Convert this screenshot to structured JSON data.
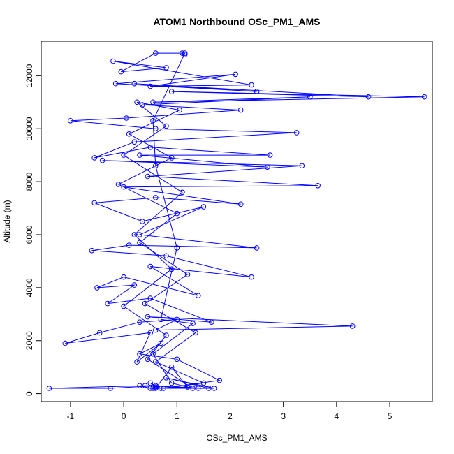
{
  "chart_data": {
    "type": "line",
    "title": "ATOM1 Northbound OSc_PM1_AMS",
    "xlabel": "OSc_PM1_AMS",
    "ylabel": "Altitude (m)",
    "xlim": [
      -1.55,
      5.8
    ],
    "ylim": [
      -300,
      13300
    ],
    "x_ticks": [
      -1,
      0,
      1,
      2,
      3,
      4,
      5
    ],
    "y_ticks": [
      0,
      2000,
      4000,
      6000,
      8000,
      10000,
      12000
    ],
    "grid": false,
    "legend": "none",
    "color": "#0000ff",
    "series": [
      {
        "points": [
          [
            0.55,
            200
          ],
          [
            0.6,
            250
          ],
          [
            0.5,
            400
          ],
          [
            0.7,
            200
          ],
          [
            1.4,
            200
          ],
          [
            1.7,
            200
          ],
          [
            0.8,
            600
          ],
          [
            1.6,
            200
          ],
          [
            0.4,
            300
          ],
          [
            -1.4,
            200
          ],
          [
            -0.25,
            200
          ],
          [
            0.6,
            300
          ],
          [
            0.3,
            300
          ],
          [
            0.5,
            200
          ],
          [
            1.2,
            250
          ],
          [
            0.9,
            1000
          ],
          [
            0.6,
            200
          ],
          [
            0.75,
            200
          ],
          [
            1.8,
            500
          ],
          [
            1.0,
            1300
          ],
          [
            0.3,
            1500
          ],
          [
            0.7,
            1900
          ],
          [
            0.25,
            1200
          ],
          [
            0.5,
            2300
          ],
          [
            -1.1,
            1900
          ],
          [
            -0.45,
            2300
          ],
          [
            0.3,
            2700
          ],
          [
            1.0,
            2800
          ],
          [
            0.6,
            2400
          ],
          [
            4.3,
            2550
          ],
          [
            0.45,
            2900
          ],
          [
            1.65,
            2700
          ],
          [
            0.5,
            3600
          ],
          [
            -0.3,
            3400
          ],
          [
            0.2,
            4100
          ],
          [
            -0.5,
            4000
          ],
          [
            0.0,
            4400
          ],
          [
            1.4,
            3700
          ],
          [
            0.5,
            4800
          ],
          [
            2.4,
            4400
          ],
          [
            0.8,
            5200
          ],
          [
            -0.6,
            5400
          ],
          [
            0.1,
            5600
          ],
          [
            2.5,
            5500
          ],
          [
            0.3,
            6000
          ],
          [
            1.5,
            7050
          ],
          [
            0.35,
            6500
          ],
          [
            -0.55,
            7200
          ],
          [
            0.6,
            7400
          ],
          [
            2.2,
            7150
          ],
          [
            0.0,
            7800
          ],
          [
            3.65,
            7850
          ],
          [
            0.45,
            8200
          ],
          [
            3.35,
            8600
          ],
          [
            -0.4,
            8800
          ],
          [
            2.7,
            8550
          ],
          [
            0.3,
            9000
          ],
          [
            2.75,
            9000
          ],
          [
            0.5,
            9300
          ],
          [
            -0.55,
            8900
          ],
          [
            0.2,
            9500
          ],
          [
            3.25,
            9850
          ],
          [
            0.6,
            10000
          ],
          [
            -1.0,
            10300
          ],
          [
            0.05,
            10400
          ],
          [
            2.2,
            10700
          ],
          [
            0.35,
            10900
          ],
          [
            3.5,
            11200
          ],
          [
            0.55,
            11000
          ],
          [
            5.65,
            11200
          ],
          [
            0.9,
            11400
          ],
          [
            4.6,
            11200
          ],
          [
            0.2,
            11700
          ],
          [
            2.5,
            11400
          ],
          [
            -0.15,
            11700
          ],
          [
            2.1,
            12050
          ],
          [
            0.5,
            11600
          ],
          [
            2.4,
            11650
          ],
          [
            -0.2,
            12550
          ],
          [
            0.8,
            12300
          ],
          [
            -0.05,
            12150
          ],
          [
            0.6,
            12850
          ],
          [
            1.1,
            12850
          ],
          [
            1.15,
            12800
          ]
        ]
      },
      {
        "points": [
          [
            1.15,
            12850
          ],
          [
            0.55,
            10300
          ],
          [
            0.6,
            8600
          ],
          [
            1.0,
            5500
          ],
          [
            0.7,
            2800
          ],
          [
            1.3,
            2650
          ],
          [
            0.55,
            1500
          ],
          [
            0.9,
            400
          ],
          [
            1.3,
            200
          ],
          [
            0.45,
            1300
          ],
          [
            0.8,
            2200
          ],
          [
            0.0,
            3300
          ],
          [
            0.9,
            4700
          ],
          [
            0.2,
            6000
          ],
          [
            1.1,
            7600
          ],
          [
            0.0,
            9000
          ],
          [
            0.8,
            10100
          ],
          [
            0.25,
            11000
          ],
          [
            1.05,
            10700
          ],
          [
            0.1,
            9800
          ],
          [
            0.9,
            8900
          ],
          [
            -0.1,
            7900
          ],
          [
            1.0,
            6800
          ],
          [
            0.3,
            5700
          ],
          [
            1.2,
            4500
          ],
          [
            0.4,
            3400
          ],
          [
            1.35,
            2300
          ],
          [
            0.6,
            1200
          ],
          [
            1.5,
            400
          ],
          [
            0.7,
            200
          ]
        ]
      }
    ]
  }
}
